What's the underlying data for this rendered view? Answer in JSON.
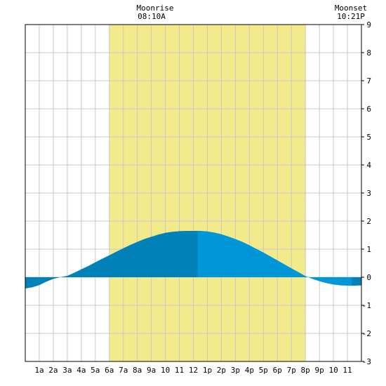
{
  "header": {
    "moonrise_label": "Moonrise",
    "moonrise_time": "08:10A",
    "moonset_label": "Moonset",
    "moonset_time": "10:21P"
  },
  "chart_data": {
    "type": "area",
    "title": "",
    "xlabel": "",
    "ylabel": "",
    "x_tick_labels": [
      "1a",
      "2a",
      "3a",
      "4a",
      "5a",
      "6a",
      "7a",
      "8a",
      "9a",
      "10",
      "11",
      "12",
      "1p",
      "2p",
      "3p",
      "4p",
      "5p",
      "6p",
      "7p",
      "8p",
      "9p",
      "10",
      "11"
    ],
    "xlim": [
      0,
      24
    ],
    "ylim": [
      -3,
      9
    ],
    "y_ticks": [
      -3,
      -2,
      -1,
      0,
      1,
      2,
      3,
      4,
      5,
      6,
      7,
      8,
      9
    ],
    "y_axis_side": "right",
    "grid": true,
    "daylight_band": {
      "start_hour": 6.0,
      "end_hour": 20.0
    },
    "tide_series": {
      "name": "",
      "x": [
        0,
        0.5,
        1,
        1.5,
        2,
        2.5,
        3,
        3.5,
        4,
        4.5,
        5,
        5.5,
        6,
        6.5,
        7,
        7.5,
        8,
        8.5,
        9,
        9.5,
        10,
        10.5,
        11,
        11.5,
        12,
        12.5,
        13,
        13.5,
        14,
        14.5,
        15,
        15.5,
        16,
        16.5,
        17,
        17.5,
        18,
        18.5,
        19,
        19.5,
        20,
        20.5,
        21,
        21.5,
        22,
        22.5,
        23,
        23.5,
        24
      ],
      "y": [
        -0.4,
        -0.36,
        -0.28,
        -0.16,
        -0.06,
        0.0,
        0.05,
        0.16,
        0.28,
        0.4,
        0.53,
        0.66,
        0.78,
        0.91,
        1.03,
        1.15,
        1.26,
        1.36,
        1.44,
        1.52,
        1.58,
        1.62,
        1.64,
        1.65,
        1.65,
        1.65,
        1.63,
        1.59,
        1.53,
        1.45,
        1.36,
        1.26,
        1.14,
        1.01,
        0.88,
        0.74,
        0.6,
        0.46,
        0.32,
        0.18,
        0.04,
        -0.06,
        -0.14,
        -0.21,
        -0.26,
        -0.29,
        -0.3,
        -0.3,
        -0.29
      ]
    },
    "extremes": [
      {
        "type": "high",
        "hour": 12.3,
        "value": 1.65
      },
      {
        "type": "low",
        "hour": 23.3,
        "value": -0.3
      }
    ],
    "colors": {
      "background": "#ffffff",
      "daylight": "#f3eb8b",
      "grid": "#c8c8c8",
      "tide_dark": "#0081b8",
      "tide_light": "#0096d8",
      "axis": "#000000"
    }
  }
}
